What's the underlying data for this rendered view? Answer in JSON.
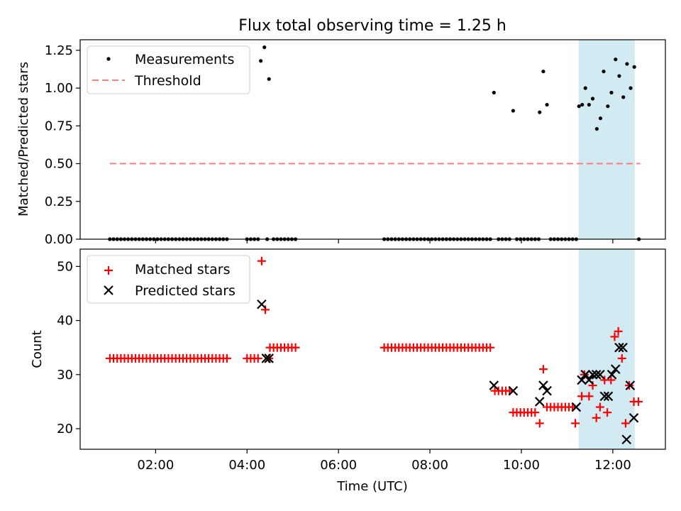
{
  "title": "Flux total observing time = 1.25 h",
  "chart_data": [
    {
      "type": "scatter",
      "ylabel": "Matched/Predicted stars",
      "ylim": [
        0,
        1.32
      ],
      "yticks": [
        "0.00",
        "0.25",
        "0.50",
        "0.75",
        "1.00",
        "1.25"
      ],
      "xlim": [
        0.35,
        13.15
      ],
      "x_unit": "hours UTC",
      "legend": {
        "placement": "top-left",
        "entries": [
          "Measurements",
          "Threshold"
        ]
      },
      "threshold": {
        "name": "Threshold",
        "y": 0.5,
        "x_range": [
          1.0,
          12.6
        ],
        "color": "#ff7b7b",
        "style": "dashed"
      },
      "highlight": {
        "x_range": [
          11.25,
          12.48
        ],
        "color": "#add8e6"
      },
      "series": [
        {
          "name": "Measurements",
          "color": "#000000",
          "points": [
            [
              1.0,
              0
            ],
            [
              1.08,
              0
            ],
            [
              1.16,
              0
            ],
            [
              1.24,
              0
            ],
            [
              1.32,
              0
            ],
            [
              1.4,
              0
            ],
            [
              1.48,
              0
            ],
            [
              1.56,
              0
            ],
            [
              1.64,
              0
            ],
            [
              1.72,
              0
            ],
            [
              1.8,
              0
            ],
            [
              1.88,
              0
            ],
            [
              1.96,
              0
            ],
            [
              2.04,
              0
            ],
            [
              2.12,
              0
            ],
            [
              2.2,
              0
            ],
            [
              2.28,
              0
            ],
            [
              2.36,
              0
            ],
            [
              2.44,
              0
            ],
            [
              2.52,
              0
            ],
            [
              2.6,
              0
            ],
            [
              2.68,
              0
            ],
            [
              2.76,
              0
            ],
            [
              2.84,
              0
            ],
            [
              2.92,
              0
            ],
            [
              3.0,
              0
            ],
            [
              3.08,
              0
            ],
            [
              3.16,
              0
            ],
            [
              3.24,
              0
            ],
            [
              3.32,
              0
            ],
            [
              3.4,
              0
            ],
            [
              3.48,
              0
            ],
            [
              3.56,
              0
            ],
            [
              4.0,
              0
            ],
            [
              4.08,
              0
            ],
            [
              4.16,
              0
            ],
            [
              4.24,
              0
            ],
            [
              4.3,
              1.18
            ],
            [
              4.38,
              1.27
            ],
            [
              4.44,
              0
            ],
            [
              4.48,
              1.06
            ],
            [
              4.58,
              0
            ],
            [
              4.66,
              0
            ],
            [
              4.74,
              0
            ],
            [
              4.82,
              0
            ],
            [
              4.9,
              0
            ],
            [
              4.98,
              0
            ],
            [
              5.06,
              0
            ],
            [
              7.0,
              0
            ],
            [
              7.08,
              0
            ],
            [
              7.16,
              0
            ],
            [
              7.24,
              0
            ],
            [
              7.32,
              0
            ],
            [
              7.4,
              0
            ],
            [
              7.48,
              0
            ],
            [
              7.56,
              0
            ],
            [
              7.64,
              0
            ],
            [
              7.72,
              0
            ],
            [
              7.8,
              0
            ],
            [
              7.88,
              0
            ],
            [
              7.96,
              0
            ],
            [
              8.04,
              0
            ],
            [
              8.12,
              0
            ],
            [
              8.2,
              0
            ],
            [
              8.28,
              0
            ],
            [
              8.36,
              0
            ],
            [
              8.44,
              0
            ],
            [
              8.52,
              0
            ],
            [
              8.6,
              0
            ],
            [
              8.68,
              0
            ],
            [
              8.76,
              0
            ],
            [
              8.84,
              0
            ],
            [
              8.92,
              0
            ],
            [
              9.0,
              0
            ],
            [
              9.08,
              0
            ],
            [
              9.16,
              0
            ],
            [
              9.24,
              0
            ],
            [
              9.32,
              0
            ],
            [
              9.4,
              0.97
            ],
            [
              9.5,
              0
            ],
            [
              9.58,
              0
            ],
            [
              9.66,
              0
            ],
            [
              9.74,
              0
            ],
            [
              9.82,
              0.85
            ],
            [
              9.9,
              0
            ],
            [
              9.98,
              0
            ],
            [
              10.06,
              0
            ],
            [
              10.14,
              0
            ],
            [
              10.22,
              0
            ],
            [
              10.3,
              0
            ],
            [
              10.38,
              0
            ],
            [
              10.4,
              0.84
            ],
            [
              10.48,
              1.11
            ],
            [
              10.56,
              0.89
            ],
            [
              10.64,
              0
            ],
            [
              10.72,
              0
            ],
            [
              10.8,
              0
            ],
            [
              10.88,
              0
            ],
            [
              10.96,
              0
            ],
            [
              11.04,
              0
            ],
            [
              11.12,
              0
            ],
            [
              11.2,
              0
            ],
            [
              11.26,
              0.88
            ],
            [
              11.33,
              0.89
            ],
            [
              11.4,
              1.0
            ],
            [
              11.48,
              0.89
            ],
            [
              11.56,
              0.93
            ],
            [
              11.65,
              0.73
            ],
            [
              11.73,
              0.8
            ],
            [
              11.8,
              1.11
            ],
            [
              11.89,
              0.88
            ],
            [
              11.97,
              0.97
            ],
            [
              12.06,
              1.19
            ],
            [
              12.14,
              1.08
            ],
            [
              12.23,
              0.94
            ],
            [
              12.31,
              1.16
            ],
            [
              12.39,
              1.0
            ],
            [
              12.47,
              1.14
            ],
            [
              12.57,
              0
            ]
          ]
        }
      ]
    },
    {
      "type": "scatter",
      "xlabel": "Time (UTC)",
      "ylabel": "Count",
      "ylim": [
        16.2,
        53.2
      ],
      "yticks": [
        "20",
        "30",
        "40",
        "50"
      ],
      "xlim": [
        0.35,
        13.15
      ],
      "xticks": [
        "02:00",
        "04:00",
        "06:00",
        "08:00",
        "10:00",
        "12:00"
      ],
      "legend": {
        "placement": "top-left",
        "entries": [
          "Matched stars",
          "Predicted stars"
        ]
      },
      "highlight": {
        "x_range": [
          11.25,
          12.48
        ],
        "color": "#add8e6"
      },
      "series": [
        {
          "name": "Matched stars",
          "color": "#ff0000",
          "marker": "plus",
          "points": [
            [
              1.0,
              33
            ],
            [
              1.08,
              33
            ],
            [
              1.16,
              33
            ],
            [
              1.24,
              33
            ],
            [
              1.32,
              33
            ],
            [
              1.4,
              33
            ],
            [
              1.48,
              33
            ],
            [
              1.56,
              33
            ],
            [
              1.64,
              33
            ],
            [
              1.72,
              33
            ],
            [
              1.8,
              33
            ],
            [
              1.88,
              33
            ],
            [
              1.96,
              33
            ],
            [
              2.04,
              33
            ],
            [
              2.12,
              33
            ],
            [
              2.2,
              33
            ],
            [
              2.28,
              33
            ],
            [
              2.36,
              33
            ],
            [
              2.44,
              33
            ],
            [
              2.52,
              33
            ],
            [
              2.6,
              33
            ],
            [
              2.68,
              33
            ],
            [
              2.76,
              33
            ],
            [
              2.84,
              33
            ],
            [
              2.92,
              33
            ],
            [
              3.0,
              33
            ],
            [
              3.08,
              33
            ],
            [
              3.16,
              33
            ],
            [
              3.24,
              33
            ],
            [
              3.32,
              33
            ],
            [
              3.4,
              33
            ],
            [
              3.48,
              33
            ],
            [
              3.56,
              33
            ],
            [
              4.0,
              33
            ],
            [
              4.08,
              33
            ],
            [
              4.16,
              33
            ],
            [
              4.24,
              33
            ],
            [
              4.32,
              51
            ],
            [
              4.4,
              42
            ],
            [
              4.48,
              33
            ],
            [
              4.5,
              35
            ],
            [
              4.58,
              35
            ],
            [
              4.66,
              35
            ],
            [
              4.74,
              35
            ],
            [
              4.82,
              35
            ],
            [
              4.9,
              35
            ],
            [
              4.98,
              35
            ],
            [
              5.06,
              35
            ],
            [
              7.0,
              35
            ],
            [
              7.08,
              35
            ],
            [
              7.16,
              35
            ],
            [
              7.24,
              35
            ],
            [
              7.32,
              35
            ],
            [
              7.4,
              35
            ],
            [
              7.48,
              35
            ],
            [
              7.56,
              35
            ],
            [
              7.64,
              35
            ],
            [
              7.72,
              35
            ],
            [
              7.8,
              35
            ],
            [
              7.88,
              35
            ],
            [
              7.96,
              35
            ],
            [
              8.04,
              35
            ],
            [
              8.12,
              35
            ],
            [
              8.2,
              35
            ],
            [
              8.28,
              35
            ],
            [
              8.36,
              35
            ],
            [
              8.44,
              35
            ],
            [
              8.52,
              35
            ],
            [
              8.6,
              35
            ],
            [
              8.68,
              35
            ],
            [
              8.76,
              35
            ],
            [
              8.84,
              35
            ],
            [
              8.92,
              35
            ],
            [
              9.0,
              35
            ],
            [
              9.08,
              35
            ],
            [
              9.16,
              35
            ],
            [
              9.24,
              35
            ],
            [
              9.32,
              35
            ],
            [
              9.42,
              27
            ],
            [
              9.5,
              27
            ],
            [
              9.58,
              27
            ],
            [
              9.66,
              27
            ],
            [
              9.74,
              27
            ],
            [
              9.82,
              23
            ],
            [
              9.9,
              23
            ],
            [
              9.98,
              23
            ],
            [
              10.06,
              23
            ],
            [
              10.14,
              23
            ],
            [
              10.22,
              23
            ],
            [
              10.3,
              23
            ],
            [
              10.4,
              21
            ],
            [
              10.48,
              31
            ],
            [
              10.56,
              24
            ],
            [
              10.64,
              24
            ],
            [
              10.72,
              24
            ],
            [
              10.8,
              24
            ],
            [
              10.88,
              24
            ],
            [
              10.96,
              24
            ],
            [
              11.04,
              24
            ],
            [
              11.12,
              24
            ],
            [
              11.18,
              21
            ],
            [
              11.32,
              26
            ],
            [
              11.38,
              30
            ],
            [
              11.48,
              26
            ],
            [
              11.56,
              28
            ],
            [
              11.64,
              22
            ],
            [
              11.72,
              24
            ],
            [
              11.82,
              29
            ],
            [
              11.88,
              23
            ],
            [
              11.96,
              29
            ],
            [
              12.04,
              37
            ],
            [
              12.12,
              38
            ],
            [
              12.2,
              33
            ],
            [
              12.28,
              21
            ],
            [
              12.36,
              28
            ],
            [
              12.46,
              25
            ],
            [
              12.56,
              25
            ]
          ]
        },
        {
          "name": "Predicted stars",
          "color": "#000000",
          "marker": "x",
          "points": [
            [
              4.32,
              43
            ],
            [
              4.42,
              33
            ],
            [
              4.48,
              33
            ],
            [
              9.4,
              28
            ],
            [
              9.82,
              27
            ],
            [
              10.4,
              25
            ],
            [
              10.48,
              28
            ],
            [
              10.56,
              27
            ],
            [
              11.2,
              24
            ],
            [
              11.32,
              29
            ],
            [
              11.4,
              30
            ],
            [
              11.48,
              29
            ],
            [
              11.56,
              30
            ],
            [
              11.64,
              30
            ],
            [
              11.72,
              30
            ],
            [
              11.82,
              26
            ],
            [
              11.9,
              26
            ],
            [
              11.98,
              30
            ],
            [
              12.06,
              31
            ],
            [
              12.14,
              35
            ],
            [
              12.22,
              35
            ],
            [
              12.3,
              18
            ],
            [
              12.38,
              28
            ],
            [
              12.46,
              22
            ]
          ]
        }
      ]
    }
  ]
}
